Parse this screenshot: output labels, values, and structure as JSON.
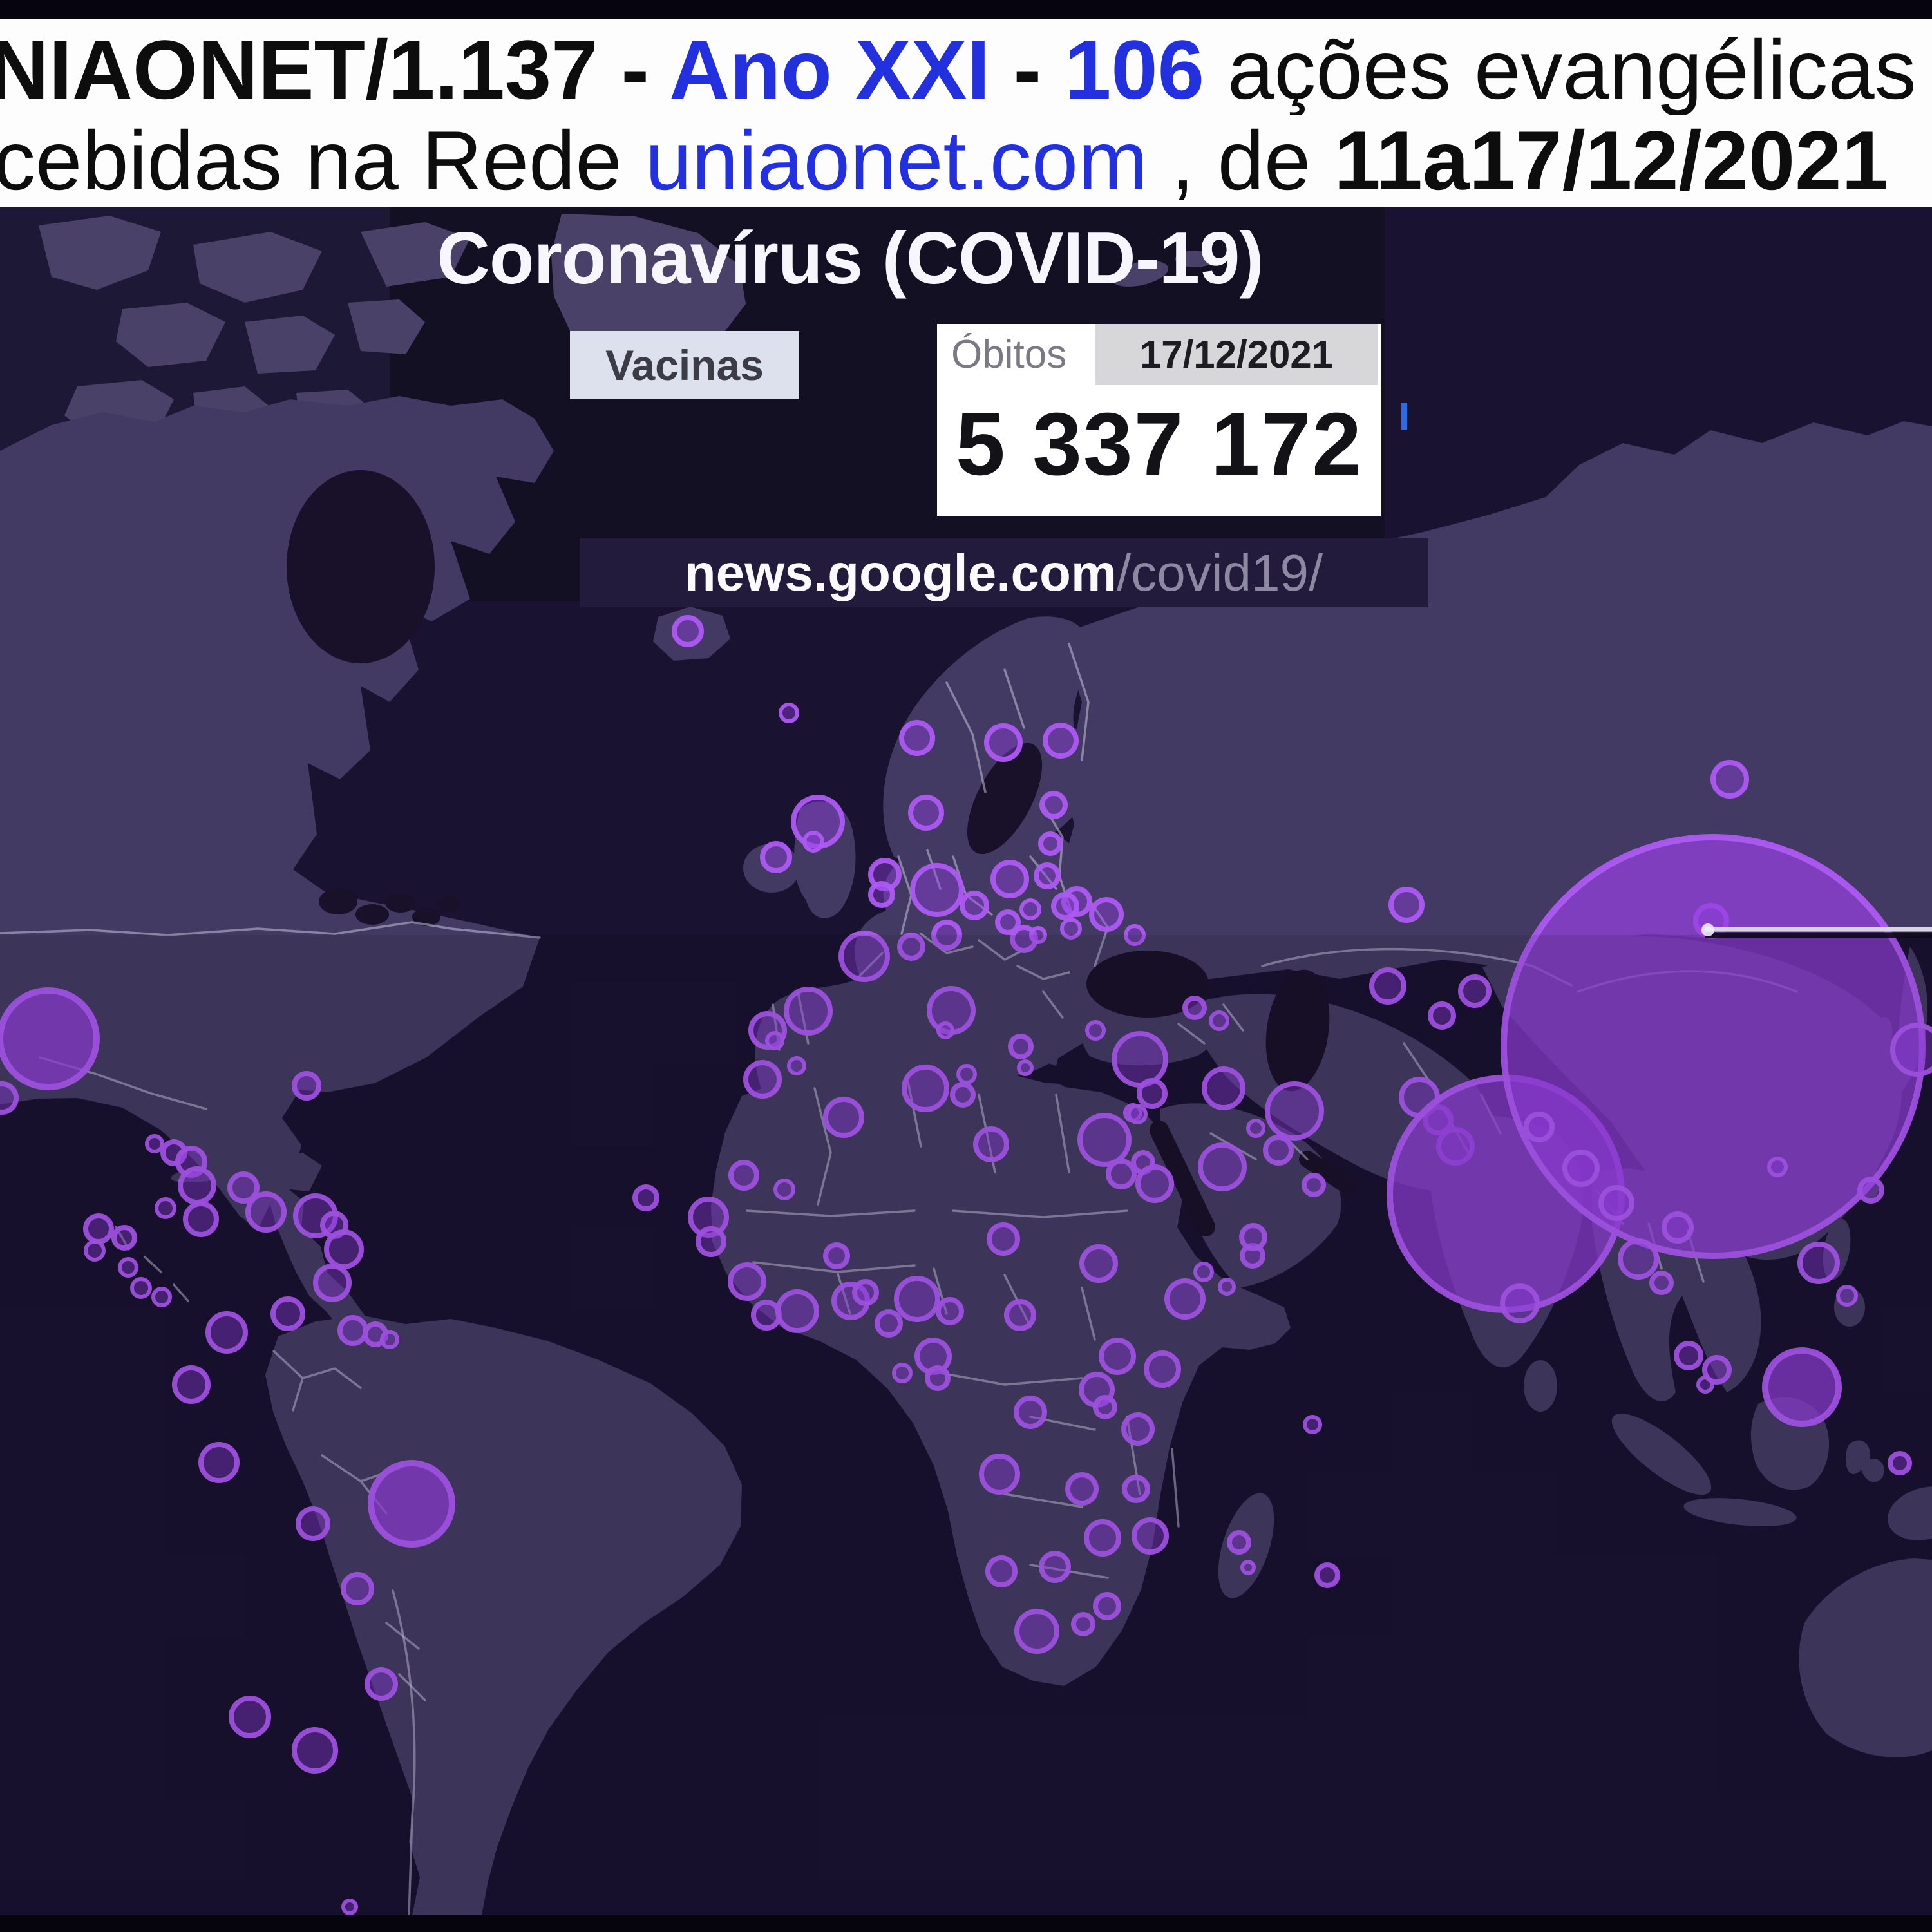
{
  "header": {
    "line1_segments": [
      {
        "text": "NIAONET/1.137",
        "style": "bold"
      },
      {
        "text": " - ",
        "style": "bold"
      },
      {
        "text": "Ano XXI",
        "style": "bold blue"
      },
      {
        "text": " - ",
        "style": "bold"
      },
      {
        "text": "106",
        "style": "bold blue"
      },
      {
        "text": " ações evangélicas",
        "style": ""
      }
    ],
    "line2_segments": [
      {
        "text": "cebidas na Rede ",
        "style": ""
      },
      {
        "text": "uniaonet.com",
        "style": "blue"
      },
      {
        "text": " , de ",
        "style": ""
      },
      {
        "text": "11a17/12/2021",
        "style": "bold"
      }
    ]
  },
  "map": {
    "title": "Coronavírus (COVID-19)",
    "tabs": [
      {
        "label": "Vacinas"
      },
      {
        "label": "Óbitos"
      }
    ],
    "date": "17/12/2021",
    "death_count": "5 337 172",
    "source": {
      "domain": "news.google.com",
      "path": "/covid19/"
    },
    "accent_colors": {
      "bubble": "#9b3de8",
      "bubble_stroke": "#ad5af2",
      "link_blue": "#2330dd"
    },
    "bubbles": [
      [
        75,
        1613,
        75
      ],
      [
        3,
        1705,
        22
      ],
      [
        476,
        1686,
        19
      ],
      [
        240,
        1776,
        12
      ],
      [
        270,
        1790,
        17
      ],
      [
        297,
        1804,
        21
      ],
      [
        306,
        1841,
        26
      ],
      [
        257,
        1876,
        14
      ],
      [
        312,
        1893,
        24
      ],
      [
        378,
        1844,
        21
      ],
      [
        413,
        1882,
        28
      ],
      [
        490,
        1888,
        31
      ],
      [
        519,
        1902,
        18
      ],
      [
        534,
        1940,
        27
      ],
      [
        516,
        1992,
        26
      ],
      [
        153,
        1908,
        20
      ],
      [
        193,
        1922,
        16
      ],
      [
        147,
        1942,
        14
      ],
      [
        199,
        1968,
        13
      ],
      [
        219,
        2000,
        14
      ],
      [
        251,
        2014,
        13
      ],
      [
        352,
        2069,
        29
      ],
      [
        447,
        2040,
        23
      ],
      [
        548,
        2066,
        20
      ],
      [
        583,
        2072,
        16
      ],
      [
        605,
        2080,
        12
      ],
      [
        297,
        2150,
        26
      ],
      [
        340,
        2271,
        28
      ],
      [
        486,
        2366,
        23
      ],
      [
        639,
        2335,
        63
      ],
      [
        555,
        2467,
        22
      ],
      [
        592,
        2615,
        22
      ],
      [
        388,
        2666,
        29
      ],
      [
        489,
        2718,
        32
      ],
      [
        543,
        2961,
        10
      ],
      [
        1068,
        980,
        21
      ],
      [
        1225,
        1107,
        13
      ],
      [
        1424,
        1146,
        24
      ],
      [
        1558,
        1153,
        26
      ],
      [
        1647,
        1150,
        24
      ],
      [
        1636,
        1250,
        18
      ],
      [
        1631,
        1310,
        15
      ],
      [
        1626,
        1360,
        17
      ],
      [
        1672,
        1400,
        20
      ],
      [
        1270,
        1276,
        38
      ],
      [
        1263,
        1307,
        14
      ],
      [
        1205,
        1331,
        21
      ],
      [
        1438,
        1262,
        24
      ],
      [
        1374,
        1358,
        22
      ],
      [
        1369,
        1389,
        17
      ],
      [
        1455,
        1382,
        38
      ],
      [
        1568,
        1365,
        26
      ],
      [
        1513,
        1406,
        19
      ],
      [
        1565,
        1432,
        16
      ],
      [
        1590,
        1458,
        18
      ],
      [
        1718,
        1420,
        23
      ],
      [
        1762,
        1452,
        14
      ],
      [
        1342,
        1485,
        36
      ],
      [
        1415,
        1470,
        18
      ],
      [
        1470,
        1452,
        20
      ],
      [
        1654,
        1407,
        18
      ],
      [
        1663,
        1442,
        14
      ],
      [
        1600,
        1412,
        14
      ],
      [
        1612,
        1452,
        11
      ],
      [
        1477,
        1569,
        34
      ],
      [
        1468,
        1600,
        11
      ],
      [
        1495,
        1700,
        16
      ],
      [
        1501,
        1668,
        13
      ],
      [
        1255,
        1570,
        34
      ],
      [
        1192,
        1600,
        26
      ],
      [
        1237,
        1655,
        12
      ],
      [
        1585,
        1625,
        16
      ],
      [
        1592,
        1658,
        10
      ],
      [
        1701,
        1600,
        13
      ],
      [
        1770,
        1645,
        40
      ],
      [
        1759,
        1728,
        12
      ],
      [
        1855,
        1565,
        15
      ],
      [
        1893,
        1585,
        13
      ],
      [
        1789,
        1698,
        20
      ],
      [
        1766,
        1730,
        13
      ],
      [
        1775,
        1805,
        15
      ],
      [
        1793,
        1838,
        26
      ],
      [
        1741,
        1823,
        20
      ],
      [
        1900,
        1690,
        30
      ],
      [
        2010,
        1725,
        42
      ],
      [
        1898,
        1812,
        34
      ],
      [
        1985,
        1786,
        20
      ],
      [
        2040,
        1840,
        15
      ],
      [
        1950,
        1752,
        12
      ],
      [
        1945,
        1950,
        16
      ],
      [
        2184,
        1405,
        24
      ],
      [
        2155,
        1531,
        25
      ],
      [
        2290,
        1539,
        22
      ],
      [
        2239,
        1577,
        18
      ],
      [
        2204,
        1704,
        28
      ],
      [
        2233,
        1739,
        20
      ],
      [
        2260,
        1780,
        26
      ],
      [
        2686,
        1210,
        26
      ],
      [
        2657,
        1430,
        24
      ],
      [
        1184,
        1676,
        26
      ],
      [
        1203,
        1616,
        12
      ],
      [
        1003,
        1860,
        17
      ],
      [
        1310,
        1735,
        28
      ],
      [
        1437,
        1690,
        33
      ],
      [
        1539,
        1777,
        24
      ],
      [
        1715,
        1770,
        38
      ],
      [
        1155,
        1825,
        20
      ],
      [
        1218,
        1847,
        14
      ],
      [
        1299,
        1950,
        17
      ],
      [
        1100,
        1890,
        28
      ],
      [
        1104,
        1928,
        20
      ],
      [
        1160,
        1990,
        26
      ],
      [
        1190,
        2042,
        20
      ],
      [
        1238,
        2036,
        30
      ],
      [
        1321,
        2020,
        26
      ],
      [
        1344,
        2007,
        17
      ],
      [
        1424,
        2017,
        32
      ],
      [
        1475,
        2036,
        18
      ],
      [
        1558,
        1924,
        22
      ],
      [
        1706,
        1962,
        26
      ],
      [
        1869,
        1975,
        13
      ],
      [
        1840,
        2017,
        28
      ],
      [
        1946,
        1921,
        18
      ],
      [
        1905,
        1998,
        11
      ],
      [
        1584,
        2042,
        21
      ],
      [
        1449,
        2106,
        25
      ],
      [
        1456,
        2140,
        16
      ],
      [
        1401,
        2132,
        13
      ],
      [
        1380,
        2055,
        18
      ],
      [
        1600,
        2193,
        22
      ],
      [
        1735,
        2106,
        25
      ],
      [
        1805,
        2126,
        25
      ],
      [
        1703,
        2158,
        24
      ],
      [
        1716,
        2185,
        15
      ],
      [
        1767,
        2219,
        22
      ],
      [
        1552,
        2289,
        28
      ],
      [
        1680,
        2312,
        22
      ],
      [
        1764,
        2312,
        18
      ],
      [
        1786,
        2385,
        25
      ],
      [
        1712,
        2388,
        25
      ],
      [
        1555,
        2440,
        21
      ],
      [
        1638,
        2433,
        21
      ],
      [
        1610,
        2533,
        31
      ],
      [
        1682,
        2522,
        15
      ],
      [
        1719,
        2494,
        18
      ],
      [
        1924,
        2395,
        15
      ],
      [
        1938,
        2434,
        9
      ],
      [
        2038,
        2212,
        12
      ],
      [
        2061,
        2446,
        16
      ],
      [
        2338,
        1854,
        180
      ],
      [
        2660,
        1625,
        325
      ],
      [
        2390,
        1750,
        20
      ],
      [
        2455,
        1814,
        25
      ],
      [
        2360,
        2024,
        27
      ],
      [
        2510,
        1868,
        24
      ],
      [
        2544,
        1955,
        28
      ],
      [
        2605,
        1906,
        21
      ],
      [
        2580,
        1992,
        15
      ],
      [
        2824,
        1961,
        29
      ],
      [
        2868,
        2012,
        14
      ],
      [
        2905,
        1848,
        17
      ],
      [
        2977,
        1630,
        38
      ],
      [
        2760,
        1812,
        13
      ],
      [
        2622,
        2105,
        19
      ],
      [
        2648,
        2150,
        11
      ],
      [
        2798,
        2154,
        57
      ],
      [
        2666,
        2127,
        19
      ],
      [
        2950,
        2272,
        15
      ]
    ]
  }
}
